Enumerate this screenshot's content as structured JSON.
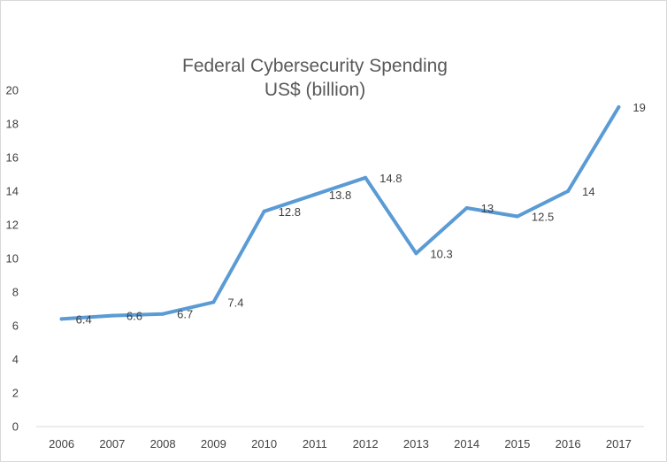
{
  "chart_data": {
    "type": "line",
    "title_lines": [
      "Federal Cybersecurity Spending",
      "US$ (billion)"
    ],
    "categories": [
      "2006",
      "2007",
      "2008",
      "2009",
      "2010",
      "2011",
      "2012",
      "2013",
      "2014",
      "2015",
      "2016",
      "2017"
    ],
    "series": [
      {
        "values": [
          6.4,
          6.6,
          6.7,
          7.4,
          12.8,
          13.8,
          14.8,
          10.3,
          13,
          12.5,
          14,
          19
        ]
      }
    ],
    "data_labels": [
      "6.4",
      "6.6",
      "6.7",
      "7.4",
      "12.8",
      "13.8",
      "14.8",
      "10.3",
      "13",
      "12.5",
      "14",
      "19"
    ],
    "ylim": [
      0,
      20
    ],
    "yticks": [
      0,
      2,
      4,
      6,
      8,
      10,
      12,
      14,
      16,
      18,
      20
    ],
    "grid": false,
    "legend": "none",
    "xlabel": "",
    "ylabel": "",
    "colors": {
      "line": "#5b9bd5",
      "text": "#404040",
      "title": "#595959",
      "axis": "#d9d9d9"
    }
  }
}
